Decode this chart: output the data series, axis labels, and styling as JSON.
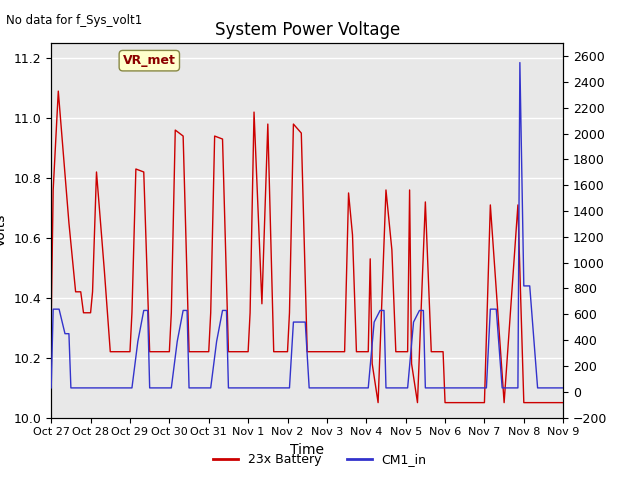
{
  "title": "System Power Voltage",
  "no_data_label": "No data for f_Sys_volt1",
  "xlabel": "Time",
  "ylabel": "Volts",
  "xlim_days": [
    0,
    13
  ],
  "ylim_left": [
    10.0,
    11.25
  ],
  "ylim_right": [
    -200,
    2700
  ],
  "bg_color": "#e8e8e8",
  "fig_color": "#ffffff",
  "grid_color": "#ffffff",
  "vr_met_label": "VR_met",
  "legend_labels": [
    "23x Battery",
    "CM1_in"
  ],
  "legend_colors": [
    "#cc0000",
    "#3333cc"
  ],
  "xtick_labels": [
    "Oct 27",
    "Oct 28",
    "Oct 29",
    "Oct 30",
    "Oct 31",
    "Nov 1",
    "Nov 2",
    "Nov 3",
    "Nov 4",
    "Nov 5",
    "Nov 6",
    "Nov 7",
    "Nov 8",
    "Nov 9"
  ],
  "ytick_left": [
    10.0,
    10.2,
    10.4,
    10.6,
    10.8,
    11.0,
    11.2
  ],
  "ytick_right": [
    -200,
    0,
    200,
    400,
    600,
    800,
    1000,
    1200,
    1400,
    1600,
    1800,
    2000,
    2200,
    2400,
    2600
  ],
  "red_x": [
    0.0,
    0.05,
    0.18,
    0.45,
    0.62,
    0.75,
    0.82,
    0.88,
    0.95,
    1.0,
    1.05,
    1.15,
    1.35,
    1.5,
    1.62,
    1.75,
    1.85,
    1.95,
    2.0,
    2.05,
    2.15,
    2.35,
    2.5,
    2.65,
    2.75,
    2.85,
    2.95,
    3.0,
    3.05,
    3.15,
    3.35,
    3.5,
    3.65,
    3.75,
    3.85,
    3.95,
    4.0,
    4.05,
    4.15,
    4.35,
    4.5,
    4.65,
    4.75,
    4.85,
    4.95,
    5.0,
    5.05,
    5.15,
    5.35,
    5.5,
    5.65,
    5.75,
    5.85,
    5.95,
    6.0,
    6.05,
    6.15,
    6.35,
    6.5,
    6.65,
    6.75,
    6.85,
    6.95,
    7.0,
    7.05,
    7.1,
    7.15,
    7.3,
    7.45,
    7.55,
    7.65,
    7.75,
    7.85,
    7.92,
    8.0,
    8.05,
    8.1,
    8.15,
    8.3,
    8.5,
    8.65,
    8.75,
    8.85,
    8.95,
    9.0,
    9.05,
    9.1,
    9.15,
    9.3,
    9.5,
    9.65,
    9.75,
    9.85,
    9.95,
    10.0,
    10.05,
    10.1,
    10.15,
    10.5,
    10.85,
    11.0,
    11.15,
    11.5,
    11.85,
    12.0,
    12.5,
    13.0
  ],
  "red_y": [
    10.32,
    10.76,
    11.09,
    10.65,
    10.42,
    10.42,
    10.35,
    10.35,
    10.35,
    10.35,
    10.42,
    10.82,
    10.49,
    10.22,
    10.22,
    10.22,
    10.22,
    10.22,
    10.22,
    10.35,
    10.83,
    10.82,
    10.22,
    10.22,
    10.22,
    10.22,
    10.22,
    10.22,
    10.35,
    10.96,
    10.94,
    10.22,
    10.22,
    10.22,
    10.22,
    10.22,
    10.22,
    10.35,
    10.94,
    10.93,
    10.22,
    10.22,
    10.22,
    10.22,
    10.22,
    10.22,
    10.35,
    11.02,
    10.38,
    10.98,
    10.22,
    10.22,
    10.22,
    10.22,
    10.22,
    10.35,
    10.98,
    10.95,
    10.22,
    10.22,
    10.22,
    10.22,
    10.22,
    10.22,
    10.22,
    10.22,
    10.22,
    10.22,
    10.22,
    10.75,
    10.61,
    10.22,
    10.22,
    10.22,
    10.22,
    10.22,
    10.53,
    10.18,
    10.05,
    10.76,
    10.56,
    10.22,
    10.22,
    10.22,
    10.22,
    10.22,
    10.76,
    10.18,
    10.05,
    10.72,
    10.22,
    10.22,
    10.22,
    10.22,
    10.05,
    10.05,
    10.05,
    10.05,
    10.05,
    10.05,
    10.05,
    10.71,
    10.05,
    10.71,
    10.05,
    10.05,
    10.05
  ],
  "blue_x": [
    0.0,
    0.05,
    0.2,
    0.35,
    0.45,
    0.5,
    0.55,
    0.6,
    0.65,
    1.0,
    1.5,
    2.0,
    2.05,
    2.2,
    2.35,
    2.45,
    2.5,
    2.55,
    2.6,
    2.65,
    3.0,
    3.05,
    3.2,
    3.35,
    3.45,
    3.5,
    3.55,
    3.6,
    3.65,
    4.0,
    4.05,
    4.2,
    4.35,
    4.45,
    4.5,
    4.55,
    4.6,
    4.65,
    5.0,
    5.5,
    6.0,
    6.05,
    6.15,
    6.35,
    6.45,
    6.55,
    6.65,
    7.0,
    7.5,
    8.0,
    8.05,
    8.2,
    8.35,
    8.45,
    8.5,
    8.55,
    8.6,
    8.65,
    9.0,
    9.05,
    9.2,
    9.35,
    9.45,
    9.5,
    9.55,
    9.6,
    9.65,
    10.0,
    10.5,
    11.0,
    11.05,
    11.15,
    11.3,
    11.45,
    11.5,
    11.55,
    11.65,
    11.85,
    11.9,
    12.0,
    12.15,
    12.35,
    12.45,
    12.5,
    12.55,
    12.65,
    12.85,
    12.9,
    13.0
  ],
  "blue_y": [
    30,
    640,
    640,
    450,
    450,
    30,
    30,
    30,
    30,
    30,
    30,
    30,
    30,
    390,
    630,
    630,
    30,
    30,
    30,
    30,
    30,
    30,
    390,
    630,
    630,
    30,
    30,
    30,
    30,
    30,
    30,
    390,
    630,
    630,
    30,
    30,
    30,
    30,
    30,
    30,
    30,
    30,
    540,
    540,
    540,
    30,
    30,
    30,
    30,
    30,
    30,
    540,
    630,
    630,
    30,
    30,
    30,
    30,
    30,
    30,
    540,
    630,
    630,
    30,
    30,
    30,
    30,
    30,
    30,
    30,
    30,
    640,
    640,
    30,
    30,
    30,
    30,
    30,
    2550,
    820,
    820,
    30,
    30,
    30,
    30,
    30,
    30,
    30,
    30
  ]
}
